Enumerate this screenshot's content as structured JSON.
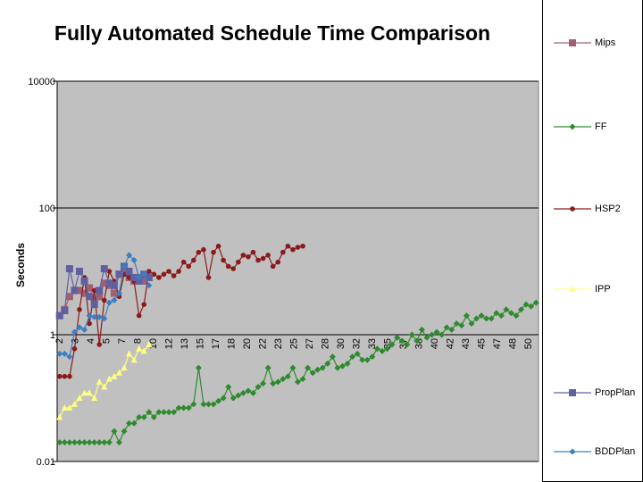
{
  "chart_data": {
    "type": "line",
    "title": "Fully Automated Schedule Time Comparison",
    "xlabel": "",
    "ylabel": "Seconds",
    "yscale": "log",
    "ylim": [
      0.01,
      10000
    ],
    "y_ticks": [
      "0.01",
      "1",
      "100",
      "10000"
    ],
    "x_tick_labels": [
      "2",
      "3",
      "4",
      "5",
      "7",
      "8",
      "10",
      "12",
      "13",
      "15",
      "17",
      "18",
      "20",
      "22",
      "23",
      "25",
      "27",
      "28",
      "30",
      "32",
      "33",
      "35",
      "37",
      "38",
      "40",
      "42",
      "43",
      "45",
      "47",
      "48",
      "50"
    ],
    "x_count": 97,
    "grid": "horizontal major lines",
    "legend_position": "right",
    "series": [
      {
        "name": "Mips",
        "color": "#a06070",
        "marker": "square",
        "x": [
          1,
          2,
          3,
          4,
          5,
          6,
          7,
          8,
          9,
          10,
          11,
          12,
          13,
          14,
          15,
          16,
          17,
          18,
          19
        ],
        "y": [
          2,
          2.5,
          4,
          5,
          5,
          4.5,
          5.5,
          3.5,
          4,
          6.5,
          6,
          4.5,
          9,
          11,
          8,
          7,
          8,
          7,
          8
        ]
      },
      {
        "name": "FF",
        "color": "#2f8a2f",
        "marker": "diamond",
        "x": [
          1,
          2,
          3,
          4,
          5,
          6,
          7,
          8,
          9,
          10,
          11,
          12,
          13,
          14,
          15,
          16,
          17,
          18,
          19,
          20,
          21,
          22,
          23,
          24,
          25,
          26,
          27,
          28,
          29,
          30,
          31,
          32,
          33,
          34,
          35,
          36,
          37,
          38,
          39,
          40,
          41,
          42,
          43,
          44,
          45,
          46,
          47,
          48,
          49,
          50,
          51,
          52,
          53,
          54,
          55,
          56,
          57,
          58,
          59,
          60,
          61,
          62,
          63,
          64,
          65,
          66,
          67,
          68,
          69,
          70,
          71,
          72,
          73,
          74,
          75,
          76,
          77,
          78,
          79,
          80,
          81,
          82,
          83,
          84,
          85,
          86,
          87,
          88,
          89,
          90,
          91,
          92,
          93,
          94,
          95,
          96,
          97
        ],
        "y": [
          0.02,
          0.02,
          0.02,
          0.02,
          0.02,
          0.02,
          0.02,
          0.02,
          0.02,
          0.02,
          0.02,
          0.03,
          0.02,
          0.03,
          0.04,
          0.04,
          0.05,
          0.05,
          0.06,
          0.05,
          0.06,
          0.06,
          0.06,
          0.06,
          0.07,
          0.07,
          0.07,
          0.08,
          0.3,
          0.08,
          0.08,
          0.08,
          0.09,
          0.1,
          0.15,
          0.1,
          0.11,
          0.12,
          0.13,
          0.12,
          0.15,
          0.17,
          0.3,
          0.17,
          0.18,
          0.2,
          0.22,
          0.3,
          0.18,
          0.2,
          0.3,
          0.25,
          0.28,
          0.3,
          0.35,
          0.45,
          0.3,
          0.32,
          0.35,
          0.45,
          0.5,
          0.4,
          0.4,
          0.45,
          0.6,
          0.55,
          0.6,
          0.7,
          0.9,
          0.8,
          0.7,
          1.0,
          0.8,
          1.2,
          0.9,
          1.0,
          1.1,
          1.0,
          1.3,
          1.2,
          1.5,
          1.4,
          2.0,
          1.5,
          1.8,
          2.0,
          1.8,
          1.8,
          2.2,
          2.0,
          2.5,
          2.2,
          2.0,
          2.5,
          3.0,
          2.8,
          3.2
        ]
      },
      {
        "name": "HSP2",
        "color": "#8b1a1a",
        "marker": "circle",
        "x": [
          1,
          2,
          3,
          4,
          5,
          6,
          7,
          8,
          9,
          10,
          11,
          12,
          13,
          14,
          15,
          16,
          17,
          18,
          19,
          20,
          21,
          22,
          23,
          24,
          25,
          26,
          27,
          28,
          29,
          30,
          31,
          32,
          33,
          34,
          35,
          36,
          37,
          38,
          39,
          40,
          41,
          42,
          43,
          44,
          45,
          46,
          47,
          48,
          49,
          50
        ],
        "y": [
          0.22,
          0.22,
          0.22,
          0.6,
          2.5,
          8,
          1.5,
          5,
          0.7,
          3.5,
          10,
          7,
          4,
          9,
          8,
          7,
          2,
          3,
          10,
          9,
          8,
          9,
          10,
          8.5,
          10,
          14,
          12,
          15,
          20,
          22,
          8,
          20,
          25,
          15,
          12,
          11,
          14,
          18,
          17,
          20,
          15,
          16,
          18,
          12,
          14,
          20,
          25,
          22,
          24,
          25
        ]
      },
      {
        "name": "IPP",
        "color": "#ffff80",
        "marker": "triangle",
        "x": [
          1,
          2,
          3,
          4,
          5,
          6,
          7,
          8,
          9,
          10,
          11,
          12,
          13,
          14,
          15,
          16,
          17,
          18,
          19
        ],
        "y": [
          0.05,
          0.07,
          0.07,
          0.08,
          0.1,
          0.12,
          0.12,
          0.1,
          0.18,
          0.15,
          0.2,
          0.22,
          0.25,
          0.3,
          0.5,
          0.4,
          0.6,
          0.55,
          0.7
        ]
      },
      {
        "name": "PropPlan",
        "color": "#6060a0",
        "marker": "square",
        "x": [
          1,
          2,
          3,
          4,
          5,
          6,
          7,
          8,
          9,
          10,
          11,
          12,
          13,
          14,
          15,
          16,
          17,
          18,
          19
        ],
        "y": [
          2,
          2.4,
          11,
          5,
          10,
          7,
          4,
          3,
          5,
          11,
          6.5,
          6,
          9,
          12,
          10,
          8,
          7,
          9,
          8
        ]
      },
      {
        "name": "BDDPlan",
        "color": "#3a7fc0",
        "marker": "diamond",
        "x": [
          1,
          2,
          3,
          4,
          5,
          6,
          7,
          8,
          9,
          10,
          11,
          12,
          13,
          14,
          15,
          16,
          17,
          18,
          19
        ],
        "y": [
          0.5,
          0.5,
          0.45,
          1.1,
          1.3,
          1.2,
          2,
          1.9,
          1.9,
          1.8,
          3.2,
          3.5,
          4.5,
          12,
          18,
          15,
          8,
          9,
          6
        ]
      }
    ]
  }
}
